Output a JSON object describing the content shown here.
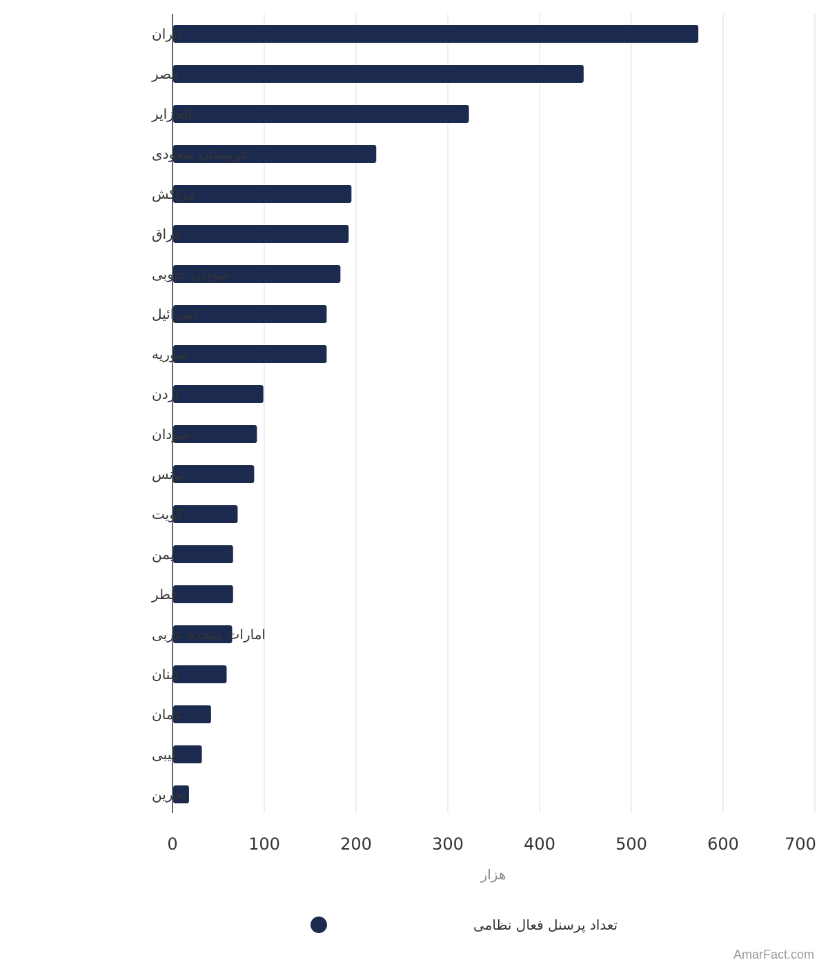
{
  "chart_data": {
    "type": "bar",
    "orientation": "horizontal",
    "categories": [
      "ایران",
      "مصر",
      "الجزایر",
      "عربستان سعودی",
      "مراکش",
      "عراق",
      "سودان جنوبی",
      "اسرائیل",
      "سوریه",
      "اردن",
      "سودان",
      "تونس",
      "کویت",
      "یمن",
      "قطر",
      "امارات متحده عربی",
      "لبنان",
      "عمان",
      "لیبی",
      "بحرین"
    ],
    "series": [
      {
        "name": "تعداد پرسنل فعال نظامی",
        "values": [
          573,
          448,
          323,
          222,
          195,
          192,
          183,
          168,
          168,
          99,
          92,
          89,
          71,
          66,
          66,
          65,
          59,
          42,
          32,
          18
        ],
        "color": "#1b2a4e"
      }
    ],
    "xlabel": "هزار",
    "ylabel": "",
    "xlim": [
      0,
      700
    ],
    "x_ticks": [
      "0",
      "100",
      "200",
      "300",
      "400",
      "500",
      "600",
      "700"
    ],
    "grid": true,
    "legend_position": "bottom"
  },
  "watermark": "AmarFact.com",
  "colors": {
    "bar": "#1b2a4e",
    "grid": "#e3e3e3",
    "axis": "#333333",
    "label_text": "#333333",
    "axis_title": "#8a8a8a"
  }
}
